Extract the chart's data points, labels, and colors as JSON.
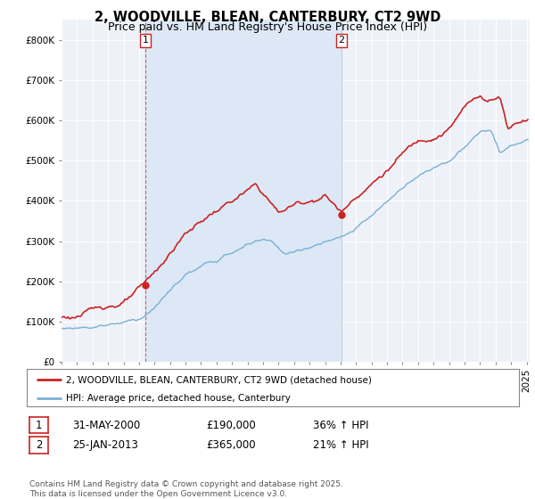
{
  "title": "2, WOODVILLE, BLEAN, CANTERBURY, CT2 9WD",
  "subtitle": "Price paid vs. HM Land Registry's House Price Index (HPI)",
  "ylim": [
    0,
    850000
  ],
  "yticks": [
    0,
    100000,
    200000,
    300000,
    400000,
    500000,
    600000,
    700000,
    800000
  ],
  "ytick_labels": [
    "£0",
    "£100K",
    "£200K",
    "£300K",
    "£400K",
    "£500K",
    "£600K",
    "£700K",
    "£800K"
  ],
  "sale1_date": 2000.42,
  "sale1_price": 190000,
  "sale2_date": 2013.07,
  "sale2_price": 365000,
  "red_color": "#cc2222",
  "blue_color": "#7ab0d4",
  "shade_color": "#dce8f5",
  "background_color": "#eef2f8",
  "grid_color": "#ffffff",
  "legend_entry1": "2, WOODVILLE, BLEAN, CANTERBURY, CT2 9WD (detached house)",
  "legend_entry2": "HPI: Average price, detached house, Canterbury",
  "table_row1": [
    "1",
    "31-MAY-2000",
    "£190,000",
    "36% ↑ HPI"
  ],
  "table_row2": [
    "2",
    "25-JAN-2013",
    "£365,000",
    "21% ↑ HPI"
  ],
  "footer": "Contains HM Land Registry data © Crown copyright and database right 2025.\nThis data is licensed under the Open Government Licence v3.0.",
  "title_fontsize": 10.5,
  "subtitle_fontsize": 9,
  "tick_fontsize": 7.5,
  "legend_fontsize": 7.5,
  "table_fontsize": 8.5,
  "footer_fontsize": 6.5
}
